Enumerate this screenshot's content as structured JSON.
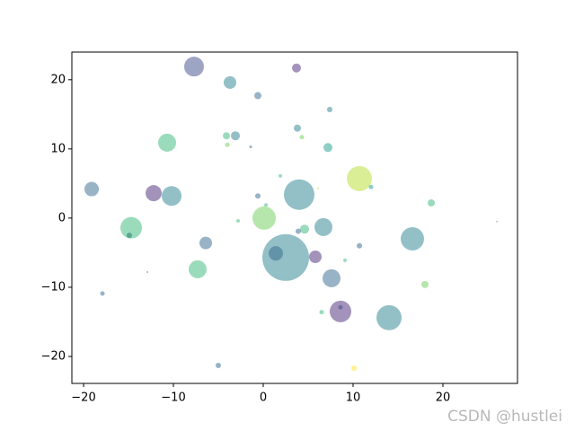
{
  "chart_data": {
    "type": "scatter",
    "x": [
      -7.7,
      -3.7,
      3.7,
      -0.6,
      7.4,
      3.8,
      -3.1,
      -4.1,
      -4.0,
      4.3,
      -10.7,
      7.2,
      -1.4,
      10.7,
      -19.1,
      12.0,
      -12.2,
      -10.2,
      -0.6,
      4.0,
      1.9,
      6.1,
      0.3,
      18.7,
      0.1,
      -2.8,
      -14.7,
      -14.9,
      4.6,
      3.9,
      6.7,
      26.0,
      16.6,
      -6.4,
      10.7,
      1.4,
      2.5,
      5.8,
      9.1,
      -7.3,
      -12.9,
      7.6,
      18.0,
      -17.9,
      8.6,
      8.6,
      6.5,
      14.0,
      -5.0,
      10.1
    ],
    "y": [
      21.9,
      19.6,
      21.7,
      17.7,
      15.7,
      13.0,
      11.9,
      11.9,
      10.6,
      11.7,
      10.9,
      10.2,
      10.3,
      5.7,
      4.2,
      4.5,
      3.6,
      3.2,
      3.2,
      3.4,
      6.1,
      4.3,
      1.9,
      2.2,
      0.0,
      -0.4,
      -1.4,
      -2.5,
      -1.6,
      -1.9,
      -1.3,
      -0.5,
      -3.0,
      -3.6,
      -4.0,
      -5.1,
      -5.7,
      -5.6,
      -6.1,
      -7.4,
      -7.8,
      -8.7,
      -9.6,
      -10.9,
      -12.9,
      -13.5,
      -13.6,
      -14.4,
      -21.3,
      -21.7
    ],
    "sizes": [
      251,
      102,
      52,
      33,
      19,
      33,
      52,
      33,
      13,
      13,
      207,
      52,
      5,
      406,
      133,
      13,
      168,
      251,
      19,
      599,
      8,
      2,
      8,
      33,
      350,
      8,
      299,
      19,
      52,
      19,
      207,
      2,
      350,
      102,
      19,
      133,
      1402,
      102,
      8,
      207,
      2,
      207,
      33,
      13,
      13,
      299,
      13,
      406,
      19,
      19
    ],
    "colors": [
      "#3e4a89",
      "#26828e",
      "#482878",
      "#31688e",
      "#26828e",
      "#26828e",
      "#26828e",
      "#35b779",
      "#6ece58",
      "#6ece58",
      "#35b779",
      "#1f9e89",
      "#31688e",
      "#b5de2b",
      "#31688e",
      "#1f9e89",
      "#482878",
      "#26828e",
      "#31688e",
      "#26828e",
      "#35b779",
      "#b5de2b",
      "#35b779",
      "#35b779",
      "#6ece58",
      "#35b779",
      "#35b779",
      "#1f7068",
      "#35b779",
      "#31688e",
      "#26828e",
      "#888888",
      "#26828e",
      "#31688e",
      "#31688e",
      "#3e4a89",
      "#26828e",
      "#482878",
      "#35b779",
      "#35b779",
      "#31688e",
      "#31688e",
      "#6ece58",
      "#31688e",
      "#31688e",
      "#482878",
      "#35b779",
      "#26828e",
      "#31688e",
      "#fde725"
    ],
    "alpha": 0.5,
    "xlim": [
      -21.3,
      28.3
    ],
    "ylim": [
      -23.9,
      24.0
    ],
    "xticks": [
      {
        "value": -20,
        "label": "−20"
      },
      {
        "value": -10,
        "label": "−10"
      },
      0,
      10,
      20
    ],
    "yticks": [
      {
        "value": -20,
        "label": "−20"
      },
      {
        "value": -10,
        "label": "−10"
      },
      0,
      10,
      20
    ],
    "watermark": "CSDN @hustlei"
  }
}
